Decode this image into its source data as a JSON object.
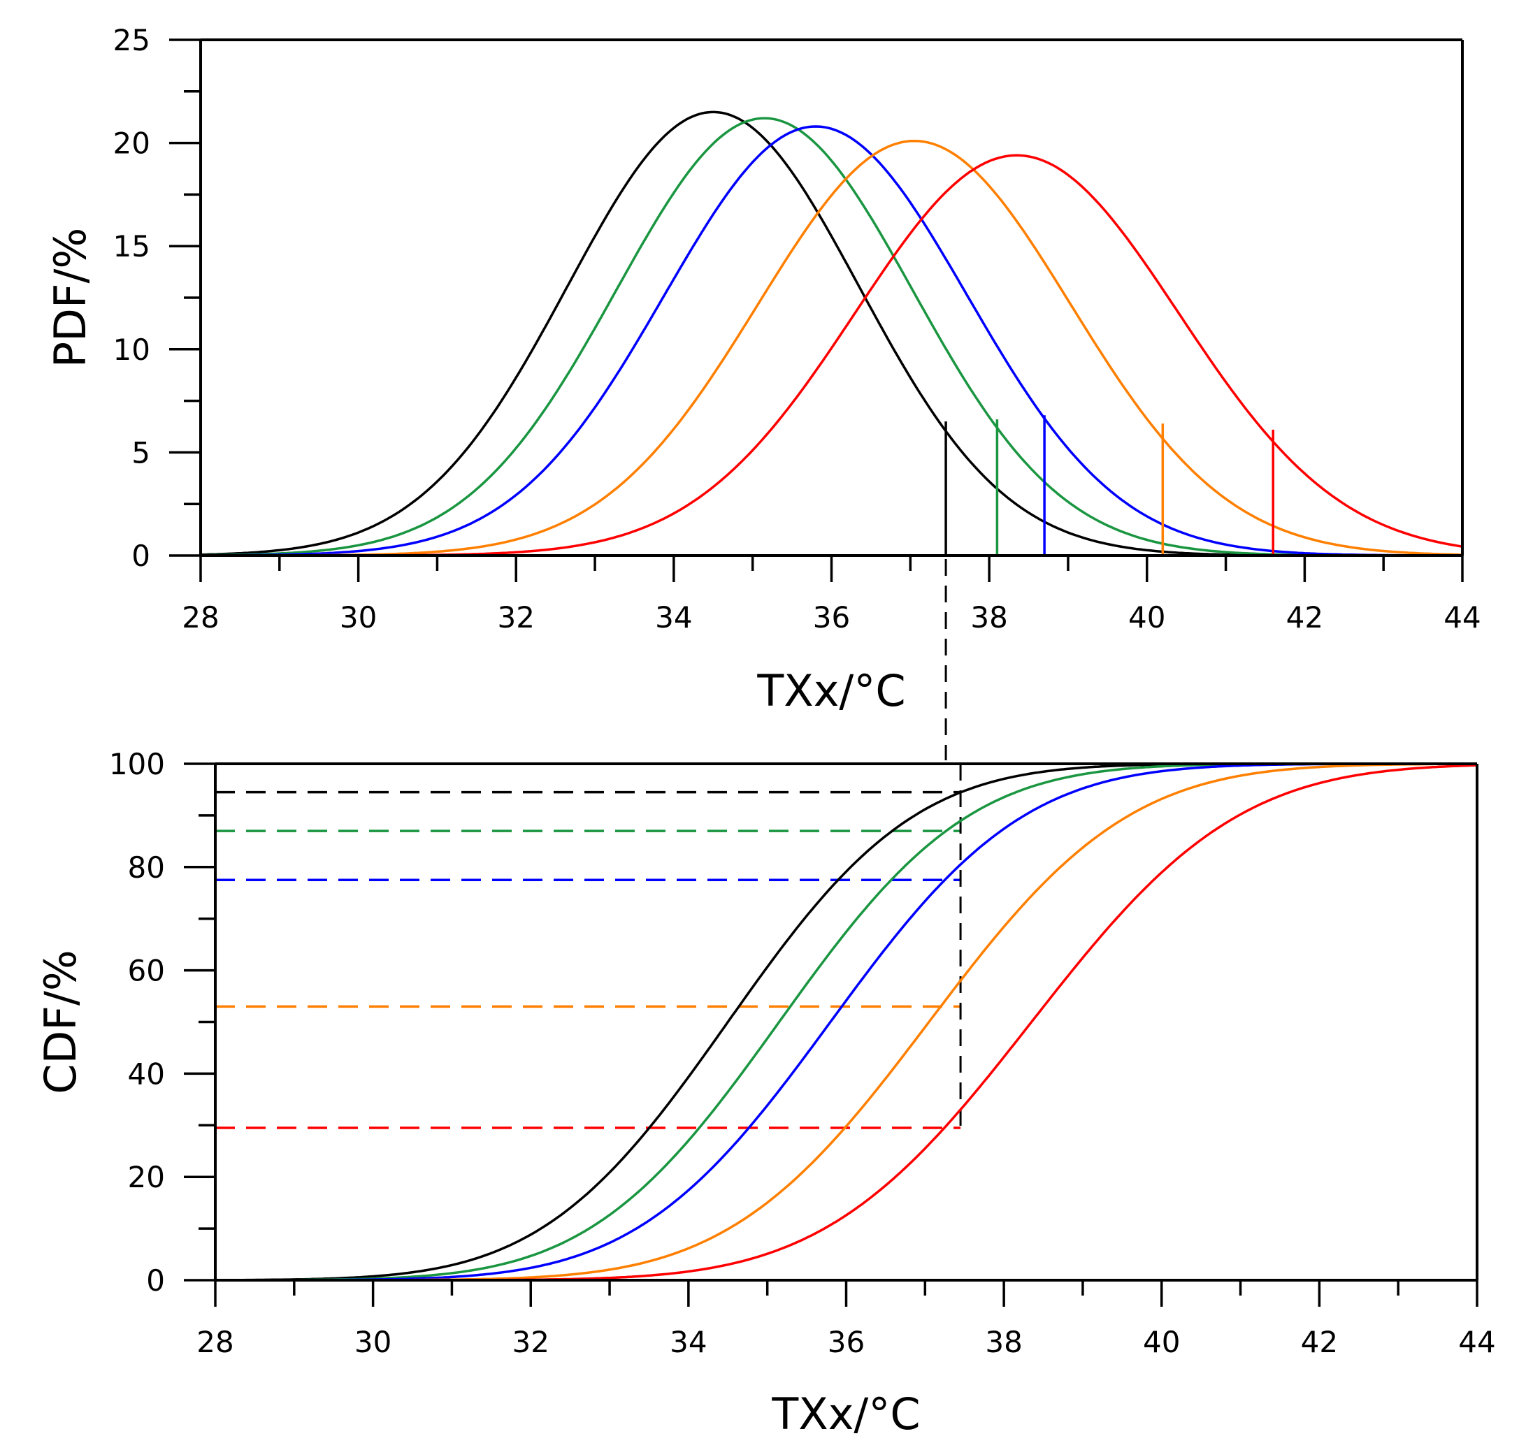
{
  "chart_data": [
    {
      "id": "pdf",
      "type": "line",
      "title": "",
      "xlabel": "TXx/°C",
      "ylabel": "PDF/%",
      "xlim": [
        28,
        44
      ],
      "ylim": [
        0,
        25
      ],
      "x_ticks": [
        "28",
        "30",
        "32",
        "34",
        "36",
        "38",
        "40",
        "42",
        "44"
      ],
      "y_ticks": [
        "0",
        "5",
        "10",
        "15",
        "20",
        "25"
      ],
      "grid": false,
      "series": [
        {
          "name": "black",
          "color": "#000000",
          "mean": 34.5,
          "sd": 1.85,
          "peak": 21.5,
          "marker_x": 37.45,
          "marker_y": 6.5
        },
        {
          "name": "green",
          "color": "#1a9641",
          "mean": 35.15,
          "sd": 1.88,
          "peak": 21.2,
          "marker_x": 38.1,
          "marker_y": 6.6
        },
        {
          "name": "blue",
          "color": "#0000ff",
          "mean": 35.8,
          "sd": 1.92,
          "peak": 20.8,
          "marker_x": 38.7,
          "marker_y": 6.8
        },
        {
          "name": "orange",
          "color": "#ff7f00",
          "mean": 37.05,
          "sd": 1.98,
          "peak": 20.1,
          "marker_x": 40.2,
          "marker_y": 6.4
        },
        {
          "name": "red",
          "color": "#ff0000",
          "mean": 38.35,
          "sd": 2.05,
          "peak": 19.4,
          "marker_x": 41.6,
          "marker_y": 6.1
        }
      ]
    },
    {
      "id": "cdf",
      "type": "line",
      "title": "",
      "xlabel": "TXx/°C",
      "ylabel": "CDF/%",
      "xlim": [
        28,
        44
      ],
      "ylim": [
        0,
        100
      ],
      "x_ticks": [
        "28",
        "30",
        "32",
        "34",
        "36",
        "38",
        "40",
        "42",
        "44"
      ],
      "y_ticks": [
        "0",
        "20",
        "40",
        "60",
        "80",
        "100"
      ],
      "grid": false,
      "threshold_x": 37.45,
      "series": [
        {
          "name": "black",
          "color": "#000000",
          "mean": 34.5,
          "sd": 1.85,
          "cdf_at_threshold": 94.5
        },
        {
          "name": "green",
          "color": "#1a9641",
          "mean": 35.15,
          "sd": 1.88,
          "cdf_at_threshold": 87
        },
        {
          "name": "blue",
          "color": "#0000ff",
          "mean": 35.8,
          "sd": 1.92,
          "cdf_at_threshold": 77.5
        },
        {
          "name": "orange",
          "color": "#ff7f00",
          "mean": 37.05,
          "sd": 1.98,
          "cdf_at_threshold": 53
        },
        {
          "name": "red",
          "color": "#ff0000",
          "mean": 38.35,
          "sd": 2.05,
          "cdf_at_threshold": 29.5
        }
      ]
    }
  ]
}
